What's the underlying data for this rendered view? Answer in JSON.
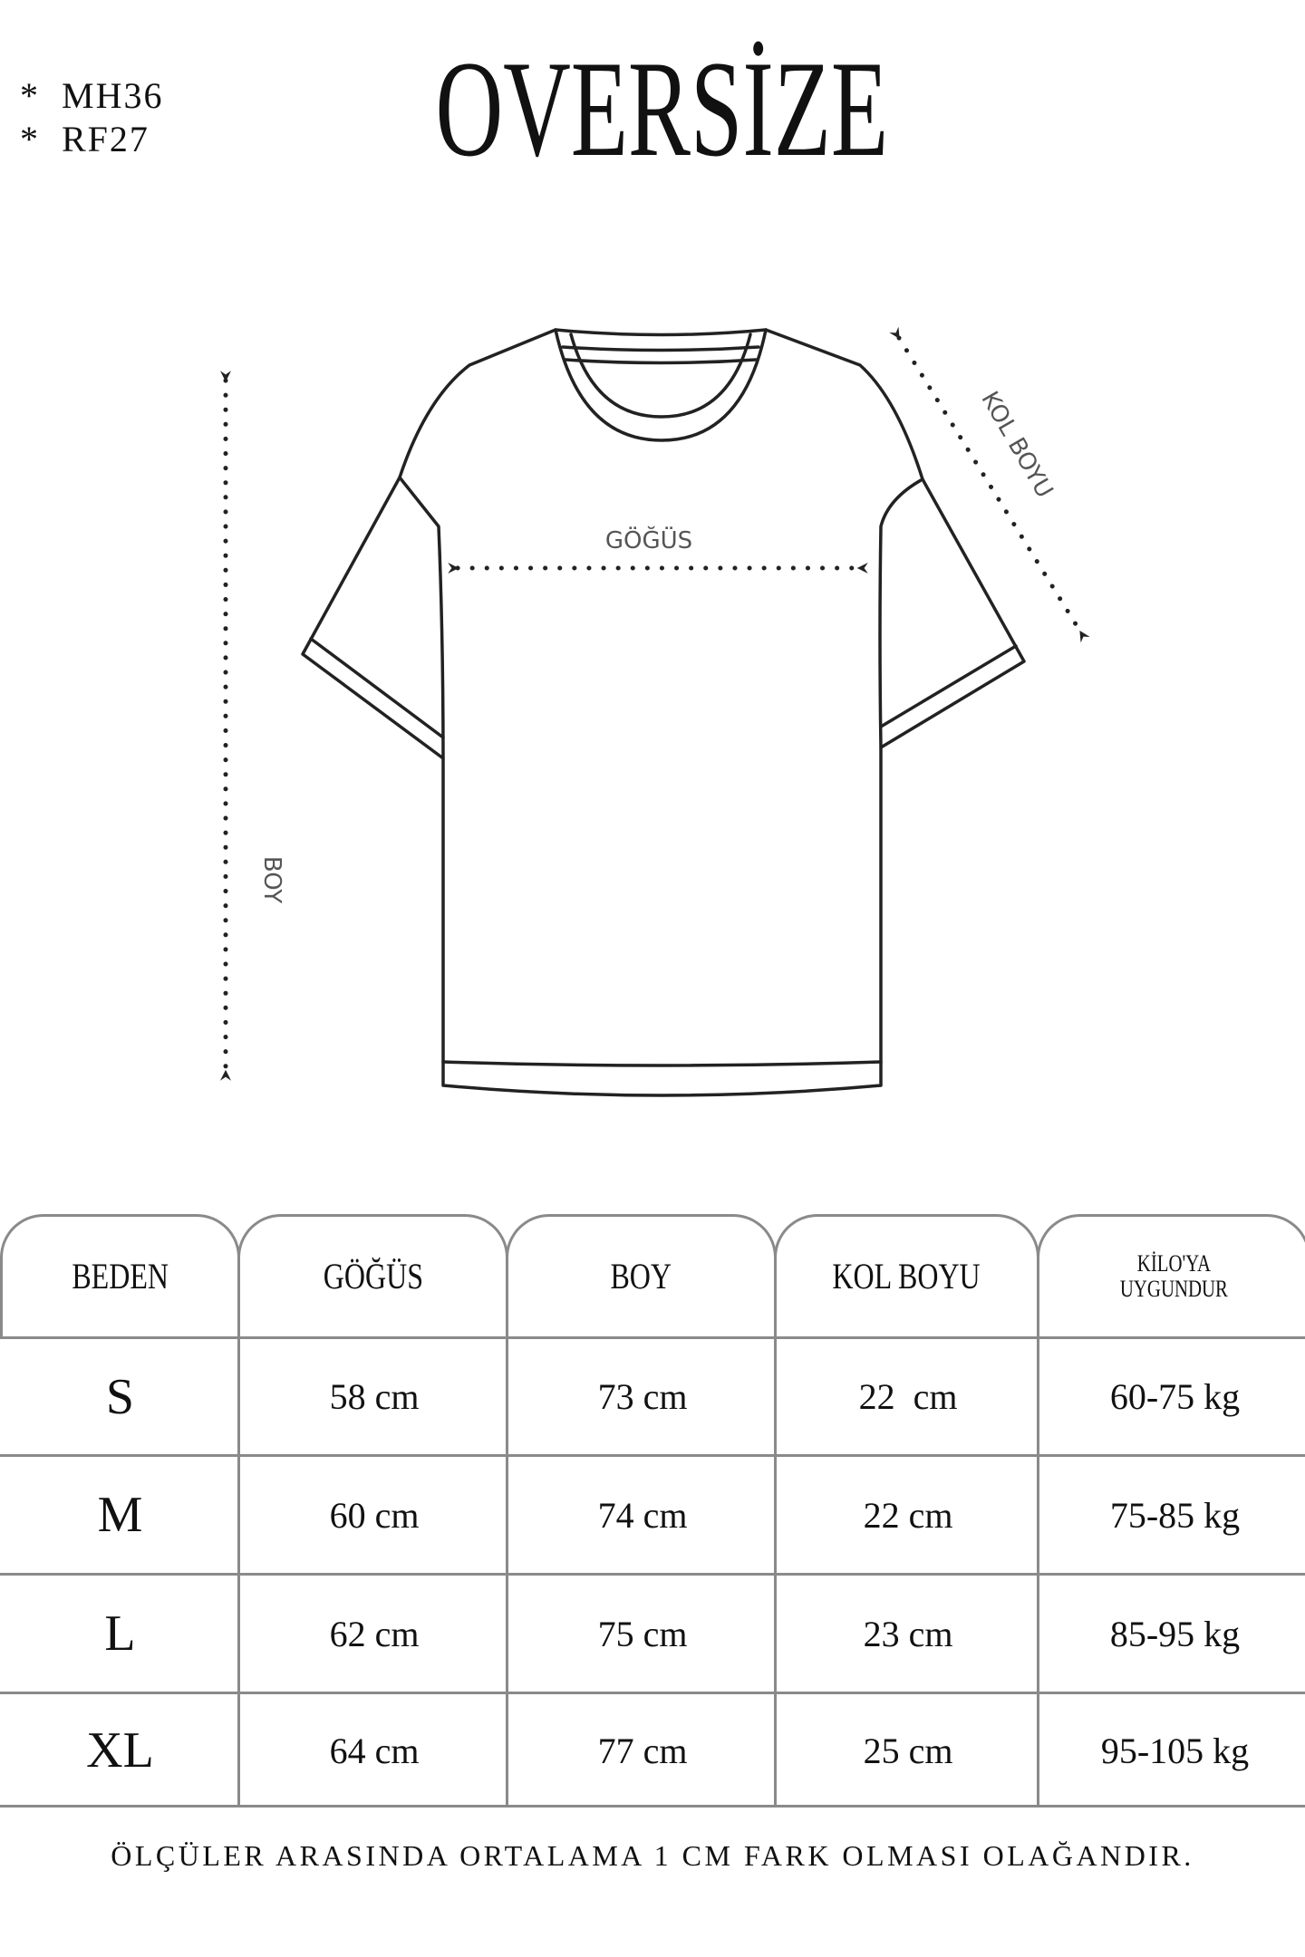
{
  "codes": [
    "*  MH36",
    "*  RF27"
  ],
  "title": "OVERSİZE",
  "diagram": {
    "chest_label": "GÖĞÜS",
    "sleeve_label": "KOL BOYU",
    "length_label": "BOY",
    "icons": [
      "tshirt-outline",
      "double-arrow-dotted"
    ]
  },
  "table": {
    "headers": [
      "BEDEN",
      "GÖĞÜS",
      "BOY",
      "KOL BOYU",
      "KİLO'YA\nUYGUNDUR"
    ],
    "headers_split": {
      "weight_line1": "KİLO'YA",
      "weight_line2": "UYGUNDUR"
    },
    "rows": [
      [
        "S",
        "58 cm",
        "73 cm",
        "22  cm",
        "60-75 kg"
      ],
      [
        "M",
        "60 cm",
        "74 cm",
        "22 cm",
        "75-85 kg"
      ],
      [
        "L",
        "62 cm",
        "75 cm",
        "23 cm",
        "85-95 kg"
      ],
      [
        "XL",
        "64 cm",
        "77 cm",
        "25 cm",
        "95-105 kg"
      ]
    ]
  },
  "footer": "ÖLÇÜLER ARASINDA ORTALAMA 1 CM FARK OLMASI OLAĞANDIR.",
  "colors": {
    "text": "#111111",
    "grid": "#8a8a8a",
    "diagram_label": "#555555"
  }
}
